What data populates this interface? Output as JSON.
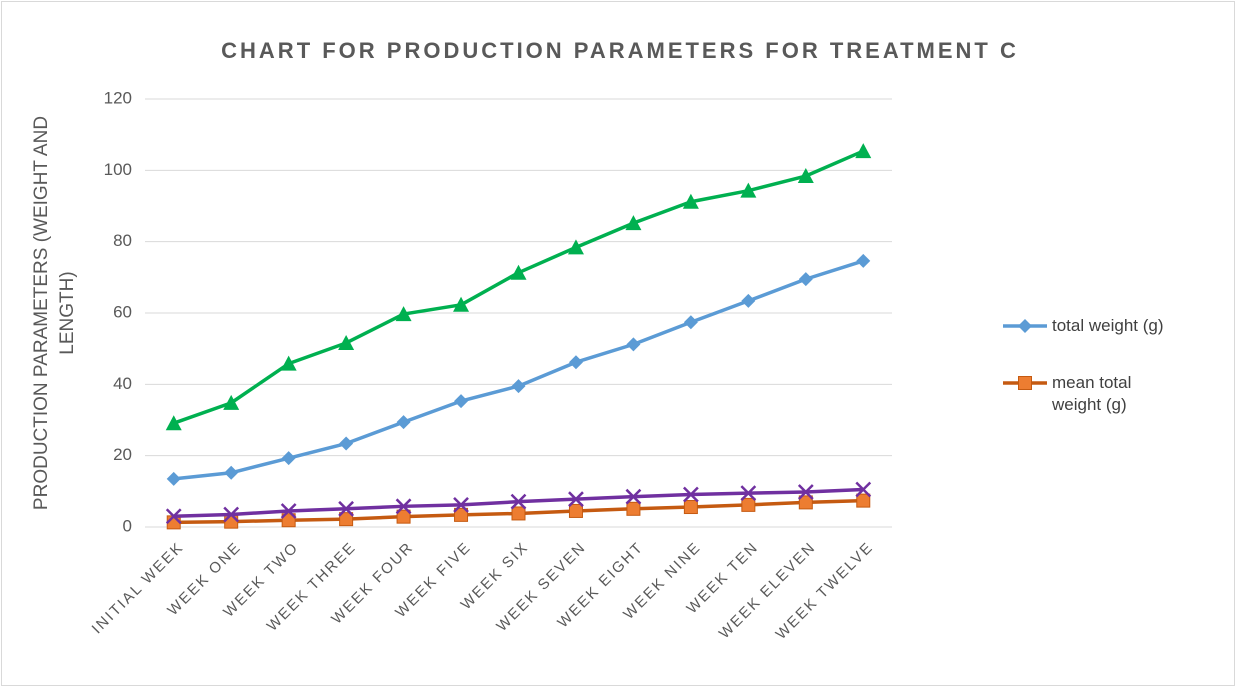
{
  "chart_data": {
    "type": "line",
    "title": "CHART FOR PRODUCTION PARAMETERS FOR TREATMENT C",
    "y_label": "PRODUCTION PARAMETERS (WEIGHT AND LENGTH)",
    "categories": [
      "INITIAL WEEK",
      "WEEK ONE",
      "WEEK TWO",
      "WEEK THREE",
      "WEEK FOUR",
      "WEEK FIVE",
      "WEEK SIX",
      "WEEK SEVEN",
      "WEEK EIGHT",
      "WEEK NINE",
      "WEEK TEN",
      "WEEK ELEVEN",
      "WEEK TWELVE"
    ],
    "series": [
      {
        "name": "total weight (g)",
        "color": "#5b9bd5",
        "marker": "diamond",
        "values": [
          13.5,
          15.2,
          19.3,
          23.4,
          29.4,
          35.3,
          39.5,
          46.2,
          51.2,
          57.4,
          63.4,
          69.5,
          74.6
        ]
      },
      {
        "name": "mean total weight (g)",
        "color": "#c55a11",
        "marker_color": "#ed7d31",
        "marker": "square",
        "values": [
          1.3,
          1.5,
          1.9,
          2.2,
          2.9,
          3.4,
          3.8,
          4.5,
          5.1,
          5.6,
          6.2,
          6.9,
          7.4
        ]
      },
      {
        "color": "#00b050",
        "marker": "triangle",
        "values": [
          29.1,
          34.8,
          45.8,
          51.6,
          59.7,
          62.3,
          71.3,
          78.4,
          85.2,
          91.2,
          94.3,
          98.4,
          105.4
        ]
      },
      {
        "color": "#7030a0",
        "marker": "x",
        "values": [
          3.0,
          3.5,
          4.5,
          5.1,
          5.8,
          6.2,
          7.1,
          7.8,
          8.5,
          9.1,
          9.5,
          9.8,
          10.5
        ]
      }
    ],
    "ylim": [
      0,
      120
    ],
    "yticks": [
      0,
      20,
      40,
      60,
      80,
      100,
      120
    ],
    "grid": true,
    "legend": "right"
  }
}
